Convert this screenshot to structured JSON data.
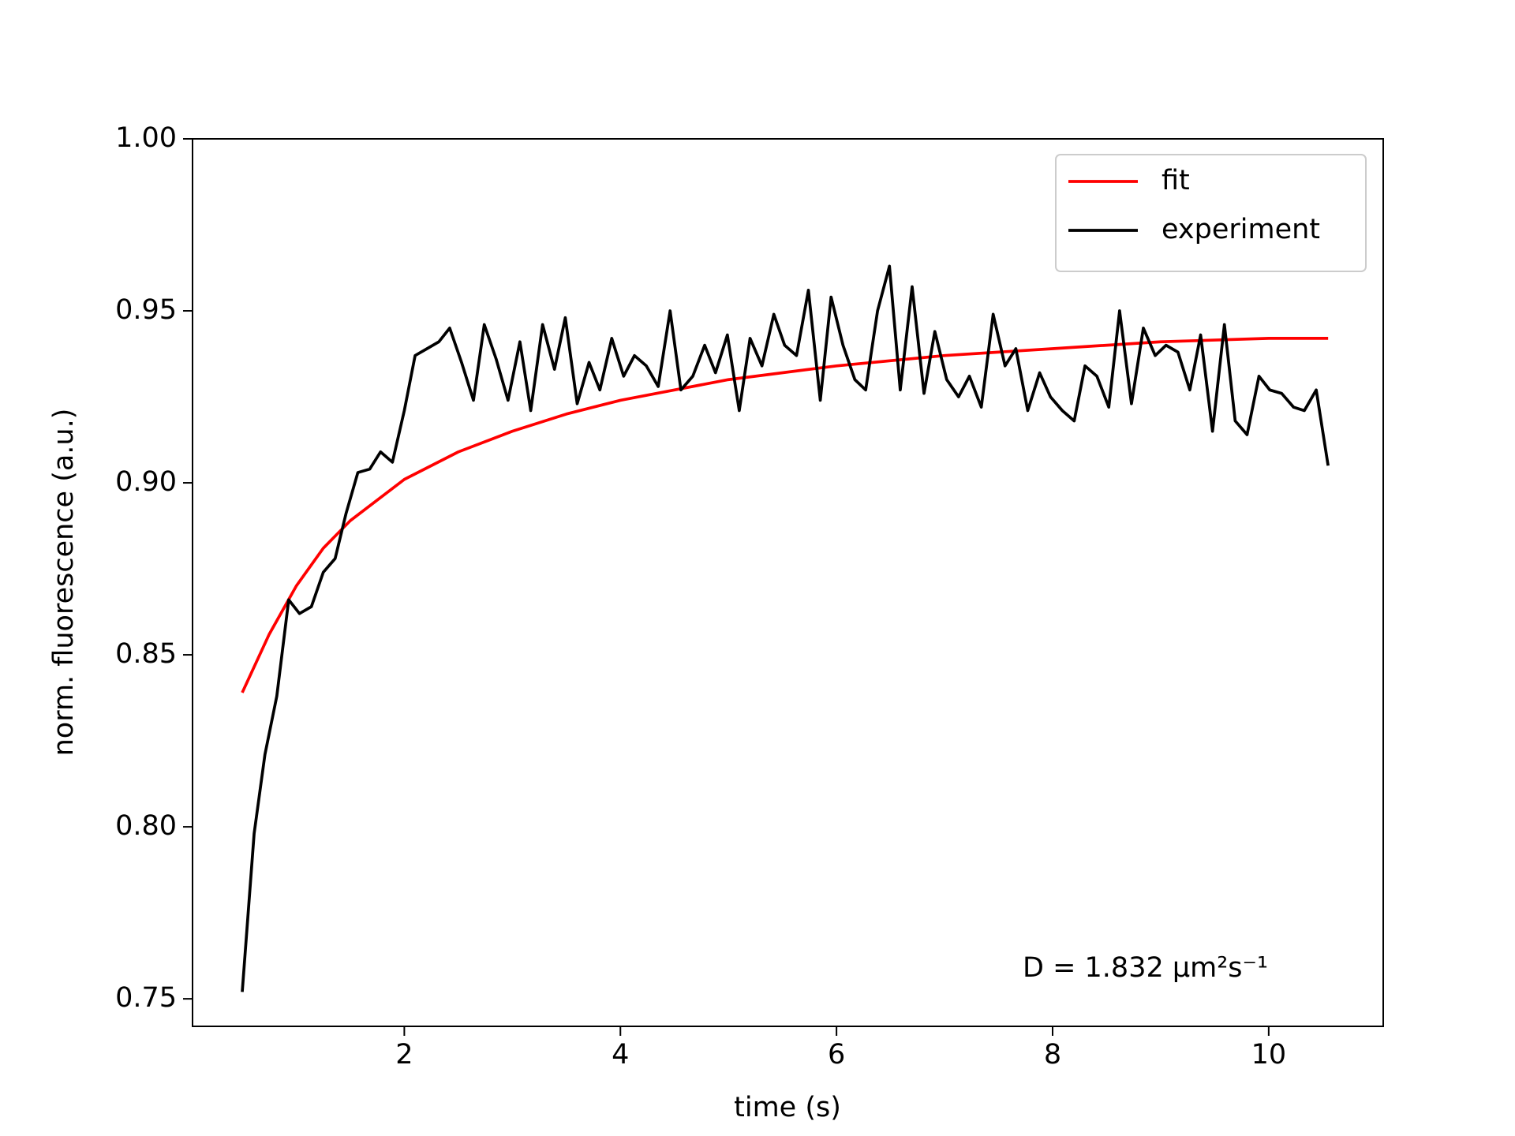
{
  "chart_data": {
    "type": "line",
    "xlabel": "time (s)",
    "ylabel": "norm. fluorescence (a.u.)",
    "annotation": "D = 1.832 μm²s⁻¹",
    "xlim": [
      0.04,
      11.06
    ],
    "ylim": [
      0.742,
      1.0
    ],
    "xticks": [
      2,
      4,
      6,
      8,
      10
    ],
    "yticks": [
      0.75,
      {
        "value": 0.8,
        "label": "0.80"
      },
      0.85,
      {
        "value": 0.9,
        "label": "0.90"
      },
      0.95,
      {
        "value": 1.0,
        "label": "1.00"
      }
    ],
    "legend": "upper right",
    "series": [
      {
        "name": "fit",
        "color": "#ff0000",
        "x": [
          0.5,
          0.75,
          1.0,
          1.25,
          1.5,
          2.0,
          2.5,
          3.0,
          3.5,
          4.0,
          4.5,
          5.0,
          6.0,
          7.0,
          8.0,
          9.0,
          10.0,
          10.55
        ],
        "values": [
          0.839,
          0.856,
          0.87,
          0.881,
          0.889,
          0.901,
          0.909,
          0.915,
          0.92,
          0.924,
          0.927,
          0.93,
          0.934,
          0.937,
          0.939,
          0.941,
          0.942,
          0.942
        ]
      },
      {
        "name": "experiment",
        "color": "#000000",
        "x": [
          0.5,
          0.61,
          0.71,
          0.82,
          0.93,
          1.03,
          1.14,
          1.25,
          1.36,
          1.46,
          1.57,
          1.68,
          1.78,
          1.89,
          2.0,
          2.1,
          2.21,
          2.32,
          2.42,
          2.53,
          2.64,
          2.74,
          2.85,
          2.96,
          3.07,
          3.17,
          3.28,
          3.39,
          3.49,
          3.6,
          3.71,
          3.81,
          3.92,
          4.03,
          4.13,
          4.24,
          4.35,
          4.46,
          4.56,
          4.67,
          4.78,
          4.88,
          4.99,
          5.1,
          5.2,
          5.31,
          5.42,
          5.52,
          5.63,
          5.74,
          5.85,
          5.95,
          6.06,
          6.17,
          6.27,
          6.38,
          6.49,
          6.59,
          6.7,
          6.81,
          6.91,
          7.02,
          7.13,
          7.23,
          7.34,
          7.45,
          7.56,
          7.66,
          7.77,
          7.88,
          7.98,
          8.09,
          8.2,
          8.3,
          8.41,
          8.52,
          8.62,
          8.73,
          8.84,
          8.95,
          9.05,
          9.16,
          9.27,
          9.37,
          9.48,
          9.59,
          9.69,
          9.8,
          9.91,
          10.01,
          10.12,
          10.23,
          10.33,
          10.44,
          10.55
        ],
        "values": [
          0.752,
          0.798,
          0.821,
          0.838,
          0.866,
          0.862,
          0.864,
          0.874,
          0.878,
          0.891,
          0.903,
          0.904,
          0.909,
          0.906,
          0.921,
          0.937,
          0.939,
          0.941,
          0.945,
          0.935,
          0.924,
          0.946,
          0.936,
          0.924,
          0.941,
          0.921,
          0.946,
          0.933,
          0.948,
          0.923,
          0.935,
          0.927,
          0.942,
          0.931,
          0.937,
          0.934,
          0.928,
          0.95,
          0.927,
          0.931,
          0.94,
          0.932,
          0.943,
          0.921,
          0.942,
          0.934,
          0.949,
          0.94,
          0.937,
          0.956,
          0.924,
          0.954,
          0.94,
          0.93,
          0.927,
          0.95,
          0.963,
          0.927,
          0.957,
          0.926,
          0.944,
          0.93,
          0.925,
          0.931,
          0.922,
          0.949,
          0.934,
          0.939,
          0.921,
          0.932,
          0.925,
          0.921,
          0.918,
          0.934,
          0.931,
          0.922,
          0.95,
          0.923,
          0.945,
          0.937,
          0.94,
          0.938,
          0.927,
          0.943,
          0.915,
          0.946,
          0.918,
          0.914,
          0.931,
          0.927,
          0.926,
          0.922,
          0.921,
          0.927,
          0.905
        ]
      }
    ]
  }
}
